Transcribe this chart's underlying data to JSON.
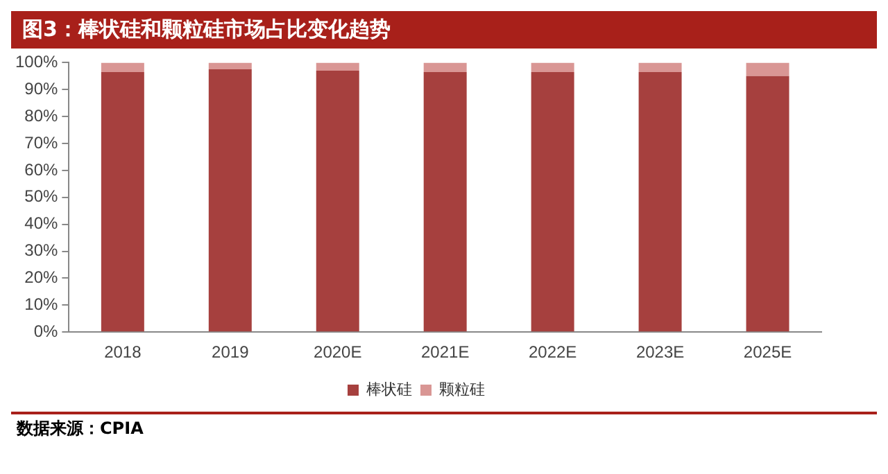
{
  "chart_data": {
    "type": "bar",
    "title": "图3：棒状硅和颗粒硅市场占比变化趋势",
    "categories": [
      "2018",
      "2019",
      "2020E",
      "2021E",
      "2022E",
      "2023E",
      "2025E"
    ],
    "stacked": true,
    "series": [
      {
        "name": "棒状硅",
        "color": "#a6403e",
        "values": [
          96.5,
          97.5,
          97,
          96.5,
          96.5,
          96.5,
          95
        ]
      },
      {
        "name": "颗粒硅",
        "color": "#d99694",
        "values": [
          3.5,
          2.5,
          3,
          3.5,
          3.5,
          3.5,
          5
        ]
      }
    ],
    "ylim": [
      0,
      100
    ],
    "yticks": [
      {
        "value": 0,
        "label": "0%"
      },
      {
        "value": 10,
        "label": "10%"
      },
      {
        "value": 20,
        "label": "20%"
      },
      {
        "value": 30,
        "label": "30%"
      },
      {
        "value": 40,
        "label": "40%"
      },
      {
        "value": 50,
        "label": "50%"
      },
      {
        "value": 60,
        "label": "60%"
      },
      {
        "value": 70,
        "label": "70%"
      },
      {
        "value": 80,
        "label": "80%"
      },
      {
        "value": 90,
        "label": "90%"
      },
      {
        "value": 100,
        "label": "100%"
      }
    ],
    "grid": false,
    "legend": "bottom",
    "annotations": [
      "数据来源：CPIA"
    ]
  }
}
